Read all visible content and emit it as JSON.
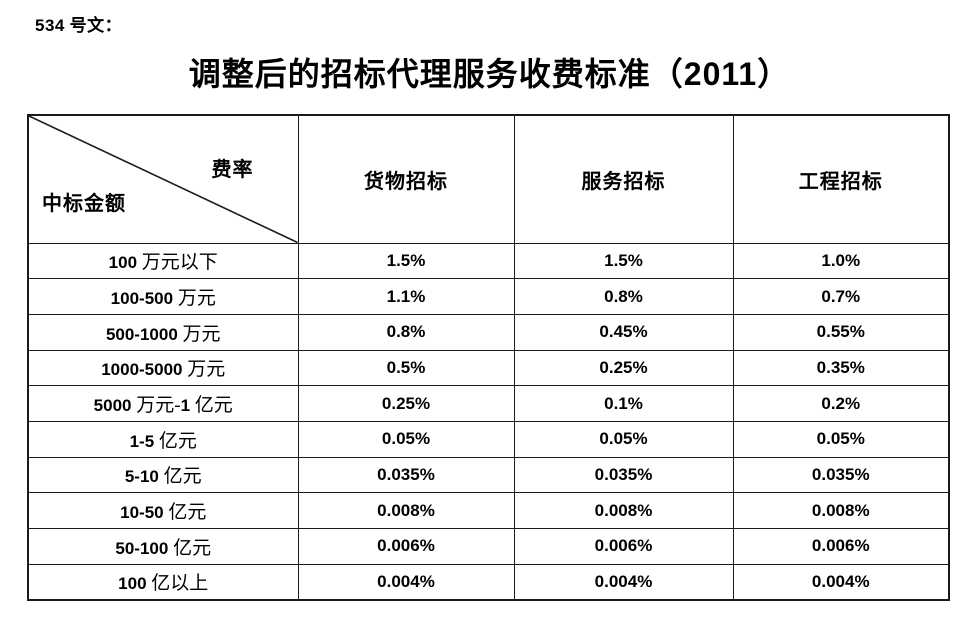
{
  "page": {
    "doc_label": "534 号文：",
    "title": "调整后的招标代理服务收费标准（2011）"
  },
  "table": {
    "corner": {
      "top_right": "费率",
      "bottom_left": "中标金额"
    },
    "columns": [
      "货物招标",
      "服务招标",
      "工程招标"
    ],
    "rows": [
      {
        "label": "100 万元以下",
        "values": [
          "1.5%",
          "1.5%",
          "1.0%"
        ]
      },
      {
        "label": "100-500 万元",
        "values": [
          "1.1%",
          "0.8%",
          "0.7%"
        ]
      },
      {
        "label": "500-1000 万元",
        "values": [
          "0.8%",
          "0.45%",
          "0.55%"
        ]
      },
      {
        "label": "1000-5000 万元",
        "values": [
          "0.5%",
          "0.25%",
          "0.35%"
        ]
      },
      {
        "label": "5000 万元-1 亿元",
        "values": [
          "0.25%",
          "0.1%",
          "0.2%"
        ]
      },
      {
        "label": "1-5 亿元",
        "values": [
          "0.05%",
          "0.05%",
          "0.05%"
        ]
      },
      {
        "label": "5-10 亿元",
        "values": [
          "0.035%",
          "0.035%",
          "0.035%"
        ]
      },
      {
        "label": "10-50 亿元",
        "values": [
          "0.008%",
          "0.008%",
          "0.008%"
        ]
      },
      {
        "label": "50-100 亿元",
        "values": [
          "0.006%",
          "0.006%",
          "0.006%"
        ]
      },
      {
        "label": "100 亿以上",
        "values": [
          "0.004%",
          "0.004%",
          "0.004%"
        ]
      }
    ],
    "colors": {
      "border": "#1a1a1a",
      "text": "#000000",
      "background": "#ffffff"
    }
  }
}
